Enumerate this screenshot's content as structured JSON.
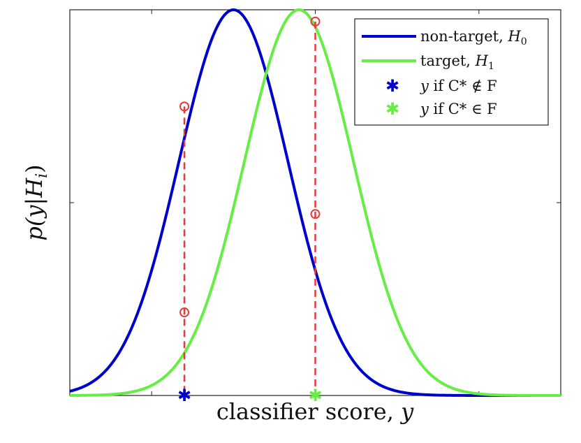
{
  "chart_data": {
    "type": "line",
    "xlabel": "classifier score, y",
    "ylabel": "p(y|H_i)",
    "xlim": [
      -3,
      6
    ],
    "ylim": [
      0,
      0.6
    ],
    "ytick_values": [
      0.3,
      0.6
    ],
    "xtick_values": [
      -1.5,
      1.5,
      4.5
    ],
    "grid": false,
    "legend_position": "top-right",
    "series": [
      {
        "name": "non-target, H_0",
        "color": "#0000cc",
        "kind": "line",
        "mean": 0.0,
        "sd": 1.0,
        "peak": 0.6
      },
      {
        "name": "target, H_1",
        "color": "#66ee44",
        "kind": "line",
        "mean": 1.2,
        "sd": 1.0,
        "peak": 0.6
      },
      {
        "name": "y if C* ∉ F",
        "color": "#0000cc",
        "kind": "marker",
        "x": -0.9,
        "y": 0
      },
      {
        "name": "y if C* ∈ F",
        "color": "#66ee44",
        "kind": "marker",
        "x": 1.5,
        "y": 0
      }
    ],
    "annotations": {
      "dashed_color": "#e8383b",
      "dashed_x": [
        -0.9,
        1.5
      ],
      "circles": [
        {
          "x": -0.9,
          "y": 0.4496
        },
        {
          "x": -0.9,
          "y": 0.1293
        },
        {
          "x": 1.5,
          "y": 0.5817
        },
        {
          "x": 1.5,
          "y": 0.2823
        }
      ]
    }
  },
  "legend": {
    "entries": [
      {
        "prefix": "non-target, ",
        "math": "H",
        "sub": "0",
        "suffix": ""
      },
      {
        "prefix": "target, ",
        "math": "H",
        "sub": "1",
        "suffix": ""
      },
      {
        "prefix": "",
        "math": "y",
        "sub": "",
        "suffix": " if C* ∉ F"
      },
      {
        "prefix": "",
        "math": "y",
        "sub": "",
        "suffix": " if C* ∈ F"
      }
    ]
  },
  "labels": {
    "xlabel_text": "classifier score, ",
    "xlabel_math": "y",
    "ylabel_text": "p(y|H",
    "ylabel_sub": "i",
    "ylabel_close": ")"
  }
}
